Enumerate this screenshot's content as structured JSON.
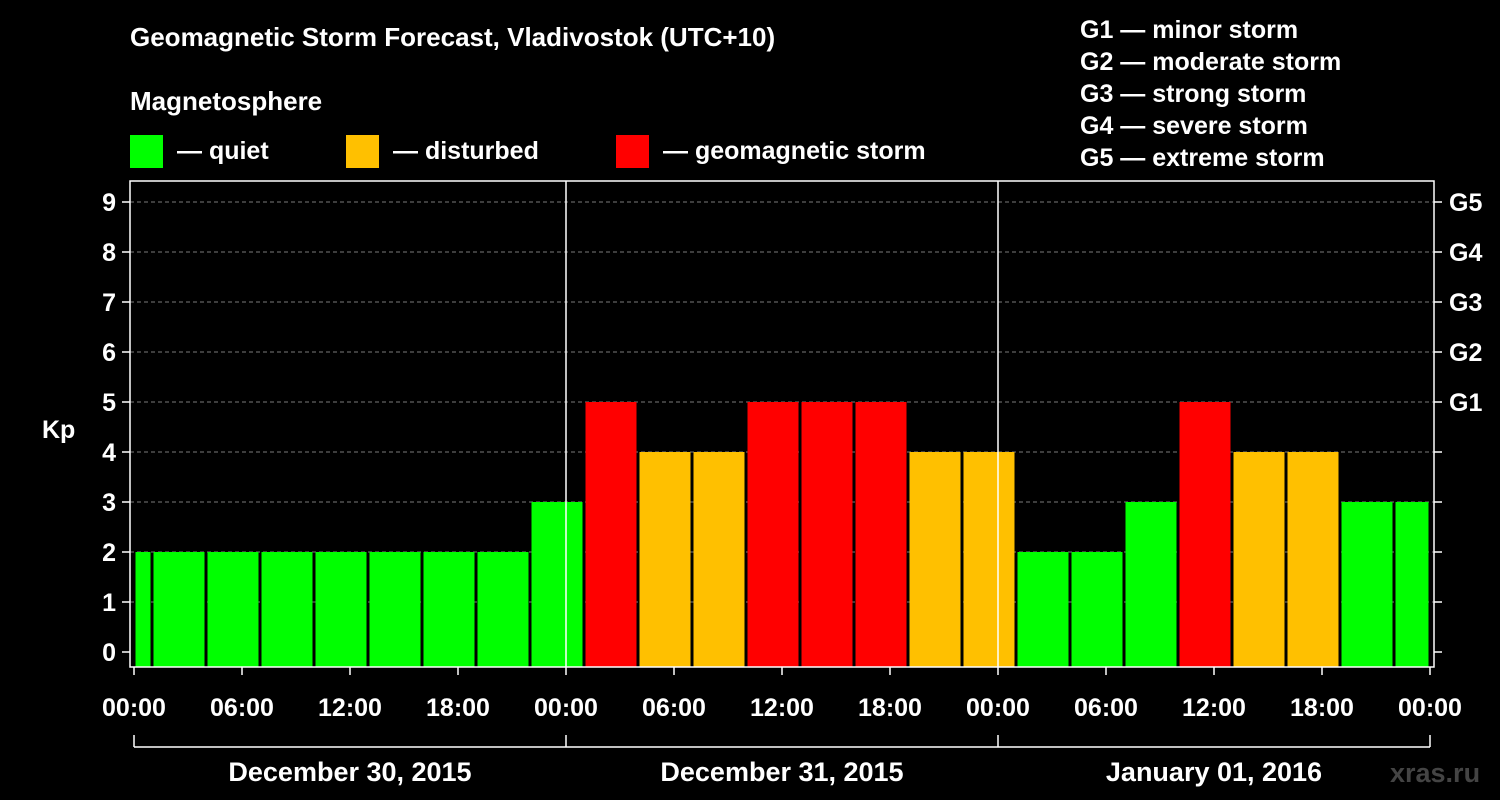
{
  "title": "Geomagnetic Storm Forecast, Vladivostok (UTC+10)",
  "subtitle": "Magnetosphere",
  "legend": [
    {
      "label": "— quiet",
      "color": "#00ff00"
    },
    {
      "label": "— disturbed",
      "color": "#ffc000"
    },
    {
      "label": "— geomagnetic storm",
      "color": "#ff0000"
    }
  ],
  "g_scale": [
    "G1 — minor storm",
    "G2 — moderate storm",
    "G3 — strong storm",
    "G4 — severe storm",
    "G5 — extreme storm"
  ],
  "watermark": "xras.ru",
  "chart_data": {
    "type": "bar",
    "ylabel": "Kp",
    "ylim": [
      0,
      9
    ],
    "yticks": [
      "0",
      "1",
      "2",
      "3",
      "4",
      "5",
      "6",
      "7",
      "8",
      "9"
    ],
    "right_ticks": [
      {
        "kp": 5,
        "label": "G1"
      },
      {
        "kp": 6,
        "label": "G2"
      },
      {
        "kp": 7,
        "label": "G3"
      },
      {
        "kp": 8,
        "label": "G4"
      },
      {
        "kp": 9,
        "label": "G5"
      }
    ],
    "x_hours_range": [
      0,
      72
    ],
    "xticks": [
      "00:00",
      "06:00",
      "12:00",
      "18:00",
      "00:00",
      "06:00",
      "12:00",
      "18:00",
      "00:00",
      "06:00",
      "12:00",
      "18:00",
      "00:00"
    ],
    "days": [
      "December 30, 2015",
      "December 31, 2015",
      "January 01, 2016"
    ],
    "colors": {
      "quiet": "#00ff00",
      "disturbed": "#ffc000",
      "storm": "#ff0000"
    },
    "bars": [
      {
        "start_h": 0,
        "end_h": 1,
        "kp": 2
      },
      {
        "start_h": 1,
        "end_h": 4,
        "kp": 2
      },
      {
        "start_h": 4,
        "end_h": 7,
        "kp": 2
      },
      {
        "start_h": 7,
        "end_h": 10,
        "kp": 2
      },
      {
        "start_h": 10,
        "end_h": 13,
        "kp": 2
      },
      {
        "start_h": 13,
        "end_h": 16,
        "kp": 2
      },
      {
        "start_h": 16,
        "end_h": 19,
        "kp": 2
      },
      {
        "start_h": 19,
        "end_h": 22,
        "kp": 2
      },
      {
        "start_h": 22,
        "end_h": 25,
        "kp": 3
      },
      {
        "start_h": 25,
        "end_h": 28,
        "kp": 5
      },
      {
        "start_h": 28,
        "end_h": 31,
        "kp": 4
      },
      {
        "start_h": 31,
        "end_h": 34,
        "kp": 4
      },
      {
        "start_h": 34,
        "end_h": 37,
        "kp": 5
      },
      {
        "start_h": 37,
        "end_h": 40,
        "kp": 5
      },
      {
        "start_h": 40,
        "end_h": 43,
        "kp": 5
      },
      {
        "start_h": 43,
        "end_h": 46,
        "kp": 4
      },
      {
        "start_h": 46,
        "end_h": 49,
        "kp": 4
      },
      {
        "start_h": 49,
        "end_h": 52,
        "kp": 2
      },
      {
        "start_h": 52,
        "end_h": 55,
        "kp": 2
      },
      {
        "start_h": 55,
        "end_h": 58,
        "kp": 3
      },
      {
        "start_h": 58,
        "end_h": 61,
        "kp": 5
      },
      {
        "start_h": 61,
        "end_h": 64,
        "kp": 4
      },
      {
        "start_h": 64,
        "end_h": 67,
        "kp": 4
      },
      {
        "start_h": 67,
        "end_h": 70,
        "kp": 3
      },
      {
        "start_h": 70,
        "end_h": 72,
        "kp": 3
      }
    ]
  }
}
